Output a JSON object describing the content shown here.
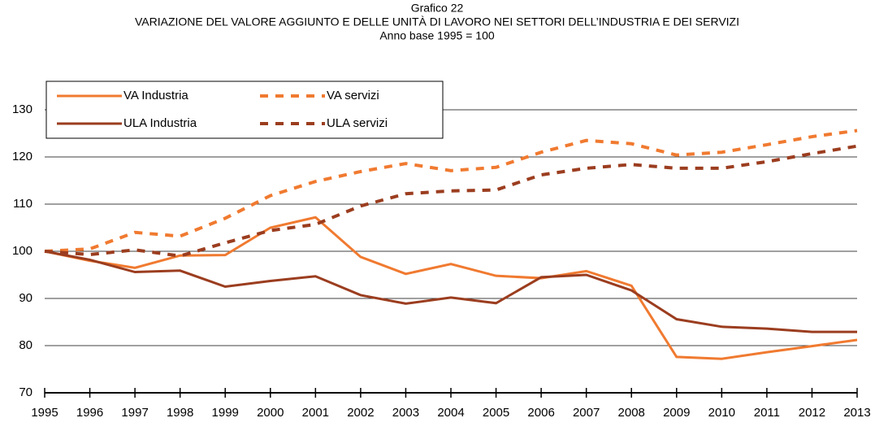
{
  "chart_data": {
    "type": "line",
    "title": [
      "Grafico 22",
      "VARIAZIONE DEL VALORE AGGIUNTO E DELLE UNITÀ DI LAVORO NEI SETTORI DELL’INDUSTRIA E DEI SERVIZI",
      "Anno base 1995 = 100"
    ],
    "x": [
      1995,
      1996,
      1997,
      1998,
      1999,
      2000,
      2001,
      2002,
      2003,
      2004,
      2005,
      2006,
      2007,
      2008,
      2009,
      2010,
      2011,
      2012,
      2013
    ],
    "xlim": [
      1995,
      2013
    ],
    "xticks": [
      1995,
      1996,
      1997,
      1998,
      1999,
      2000,
      2001,
      2002,
      2003,
      2004,
      2005,
      2006,
      2007,
      2008,
      2009,
      2010,
      2011,
      2012,
      2013
    ],
    "ylim": [
      70,
      130
    ],
    "yticks": [
      70,
      80,
      90,
      100,
      110,
      120,
      130
    ],
    "grid": true,
    "legend": "top-left",
    "series": [
      {
        "name": "VA Industria",
        "color": "#f07a30",
        "dashed": false,
        "values": [
          100,
          98,
          96.5,
          99.1,
          99.2,
          105,
          107.2,
          98.8,
          95.2,
          97.3,
          94.8,
          94.3,
          95.8,
          92.7,
          77.6,
          77.2,
          78.6,
          79.9,
          81.2
        ]
      },
      {
        "name": "VA servizi",
        "color": "#f07a30",
        "dashed": true,
        "values": [
          100,
          100.5,
          104,
          103.2,
          107,
          111.8,
          114.8,
          116.9,
          118.6,
          117.1,
          117.8,
          121,
          123.5,
          122.8,
          120.4,
          121,
          122.6,
          124.3,
          125.6
        ]
      },
      {
        "name": "ULA Industria",
        "color": "#9b3d1f",
        "dashed": false,
        "values": [
          100,
          98.2,
          95.6,
          95.9,
          92.5,
          93.7,
          94.7,
          90.7,
          88.9,
          90.2,
          89,
          94.5,
          95,
          91.7,
          85.6,
          84,
          83.6,
          82.9,
          82.9
        ]
      },
      {
        "name": "ULA servizi",
        "color": "#9b3d1f",
        "dashed": true,
        "values": [
          100,
          99.3,
          100.3,
          99,
          101.8,
          104.4,
          105.7,
          109.6,
          112.2,
          112.8,
          113,
          116.2,
          117.6,
          118.4,
          117.6,
          117.6,
          119,
          120.7,
          122.3
        ]
      }
    ]
  }
}
